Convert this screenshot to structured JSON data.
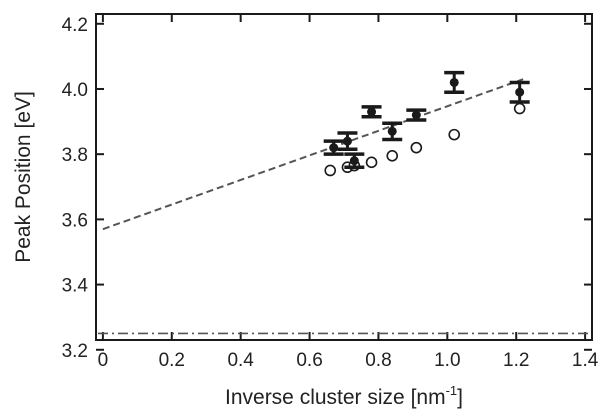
{
  "chart_data": {
    "type": "scatter",
    "xlabel": "Inverse cluster size [nm",
    "xlabel_superscript": "-1",
    "xlabel_suffix": "]",
    "ylabel": "Peak Position [eV]",
    "xlim": [
      -0.02,
      1.42
    ],
    "ylim": [
      3.23,
      4.23
    ],
    "xticks": [
      0,
      0.2,
      0.4,
      0.6,
      0.8,
      1.0,
      1.2,
      1.4
    ],
    "xtick_labels": [
      "0",
      "0.2",
      "0.4",
      "0.6",
      "0.8",
      "1.0",
      "1.2",
      "1.4"
    ],
    "yticks": [
      3.2,
      3.4,
      3.6,
      3.8,
      4.0,
      4.2
    ],
    "ytick_labels": [
      "3.2",
      "3.4",
      "3.6",
      "3.8",
      "4.0",
      "4.2"
    ],
    "grid": false,
    "legend": "none",
    "series": [
      {
        "marker": "filled-circle-with-errorbars",
        "color": "#1a1a1a",
        "points": [
          {
            "x": 0.67,
            "y": 3.82,
            "err": 0.02
          },
          {
            "x": 0.71,
            "y": 3.84,
            "err": 0.025
          },
          {
            "x": 0.73,
            "y": 3.78,
            "err": 0.02
          },
          {
            "x": 0.78,
            "y": 3.93,
            "err": 0.015
          },
          {
            "x": 0.84,
            "y": 3.87,
            "err": 0.025
          },
          {
            "x": 0.91,
            "y": 3.92,
            "err": 0.015
          },
          {
            "x": 1.02,
            "y": 4.02,
            "err": 0.03
          },
          {
            "x": 1.21,
            "y": 3.99,
            "err": 0.03
          }
        ]
      },
      {
        "marker": "open-circle",
        "color": "#1a1a1a",
        "points": [
          {
            "x": 0.66,
            "y": 3.75
          },
          {
            "x": 0.71,
            "y": 3.76
          },
          {
            "x": 0.73,
            "y": 3.765
          },
          {
            "x": 0.78,
            "y": 3.775
          },
          {
            "x": 0.84,
            "y": 3.795
          },
          {
            "x": 0.91,
            "y": 3.82
          },
          {
            "x": 1.02,
            "y": 3.86
          },
          {
            "x": 1.21,
            "y": 3.94
          }
        ]
      }
    ],
    "fit_line": {
      "style": "dashed",
      "color": "#555555",
      "x": [
        0,
        1.22
      ],
      "y": [
        3.57,
        4.03
      ]
    },
    "reference_line": {
      "style": "dash-dot",
      "color": "#555555",
      "y": 3.25
    }
  }
}
